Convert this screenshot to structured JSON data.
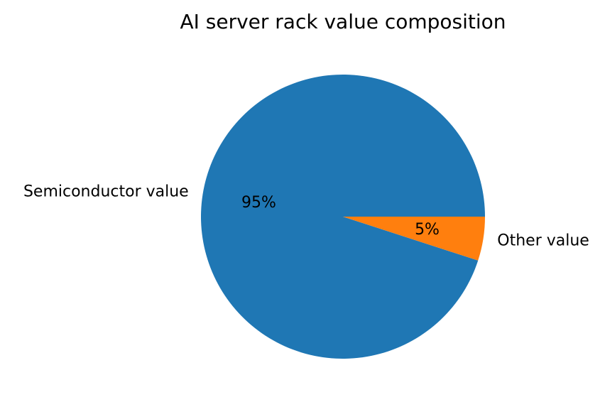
{
  "chart_data": {
    "type": "pie",
    "title": "AI server rack value composition",
    "categories": [
      "Semiconductor value",
      "Other value"
    ],
    "values": [
      95,
      5
    ],
    "value_labels": [
      "95%",
      "5%"
    ],
    "colors": [
      "#1f77b4",
      "#ff7f0e"
    ]
  }
}
